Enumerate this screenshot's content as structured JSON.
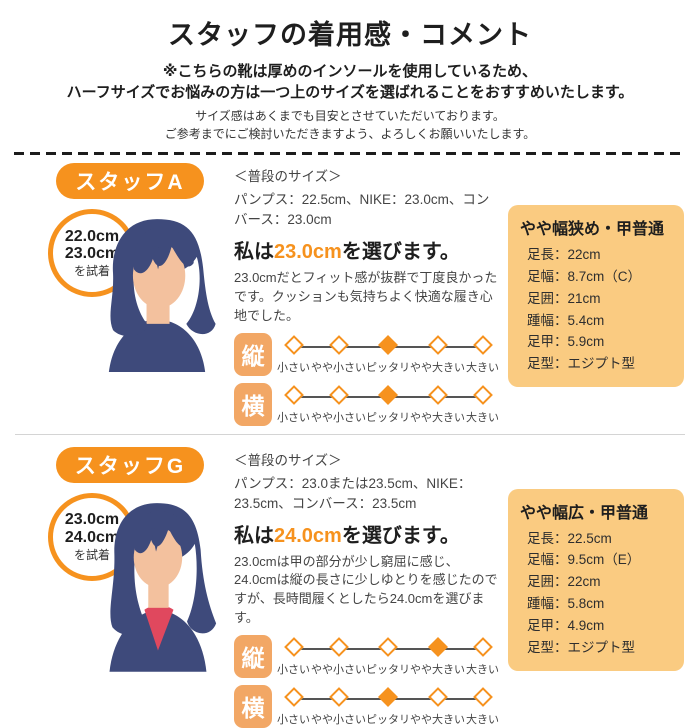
{
  "header": {
    "title": "スタッフの着用感・コメント",
    "notice_line1": "※こちらの靴は厚めのインソールを使用しているため、",
    "notice_line2": "ハーフサイズでお悩みの方は一つ上のサイズを選ばれることをおすすめいたします。",
    "disclaimer_line1": "サイズ感はあくまでも目安とさせていただいております。",
    "disclaimer_line2": "ご参考までにご検討いただきますよう、よろしくお願いいたします。"
  },
  "scale_labels": [
    "小さい",
    "やや小さい",
    "ピッタリ",
    "やや大きい",
    "大きい"
  ],
  "colors": {
    "accent_orange": "#F6921E",
    "chip_orange": "#F2A765",
    "box_background": "#FACB81",
    "avatar_navy": "#3E4A7B",
    "avatar_skin": "#F3C19E",
    "avatar_red": "#E0485E"
  },
  "staff": [
    {
      "name": "スタッフA",
      "tried": {
        "size1": "22.0cm",
        "size2": "23.0cm",
        "suffix": "を試着"
      },
      "usual": {
        "title": "＜普段のサイズ＞",
        "sizes": "パンプス：22.5cm、NIKE：23.0cm、コンバース：23.0cm"
      },
      "choice": {
        "prefix": "私は",
        "size": "23.0cm",
        "suffix": "を選びます。"
      },
      "comment": "23.0cmだとフィット感が抜群で丁度良かったです。クッションも気持ちよく快適な履き心地でした。",
      "scales": [
        {
          "axis": "縦",
          "selected": 2,
          "selected_label": "ピッタリ"
        },
        {
          "axis": "横",
          "selected": 2,
          "selected_label": "ピッタリ"
        }
      ],
      "foot": {
        "title": "やや幅狭め・甲普通",
        "rows": [
          "足長：22cm",
          "足幅：8.7cm（C）",
          "足囲：21cm",
          "踵幅：5.4cm",
          "足甲：5.9cm",
          "足型：エジプト型"
        ]
      }
    },
    {
      "name": "スタッフG",
      "tried": {
        "size1": "23.0cm",
        "size2": "24.0cm",
        "suffix": "を試着"
      },
      "usual": {
        "title": "＜普段のサイズ＞",
        "sizes": "パンプス：23.0または23.5cm、NIKE：23.5cm、コンバース：23.5cm"
      },
      "choice": {
        "prefix": "私は",
        "size": "24.0cm",
        "suffix": "を選びます。"
      },
      "comment": "23.0cmは甲の部分が少し窮屈に感じ、24.0cmは縦の長さに少しゆとりを感じたのですが、長時間履くとしたら24.0cmを選びます。",
      "scales": [
        {
          "axis": "縦",
          "selected": 3,
          "selected_label": "やや大きい"
        },
        {
          "axis": "横",
          "selected": 2,
          "selected_label": "ピッタリ"
        }
      ],
      "foot": {
        "title": "やや幅広・甲普通",
        "rows": [
          "足長：22.5cm",
          "足幅：9.5cm（E）",
          "足囲：22cm",
          "踵幅：5.8cm",
          "足甲：4.9cm",
          "足型：エジプト型"
        ]
      }
    }
  ]
}
